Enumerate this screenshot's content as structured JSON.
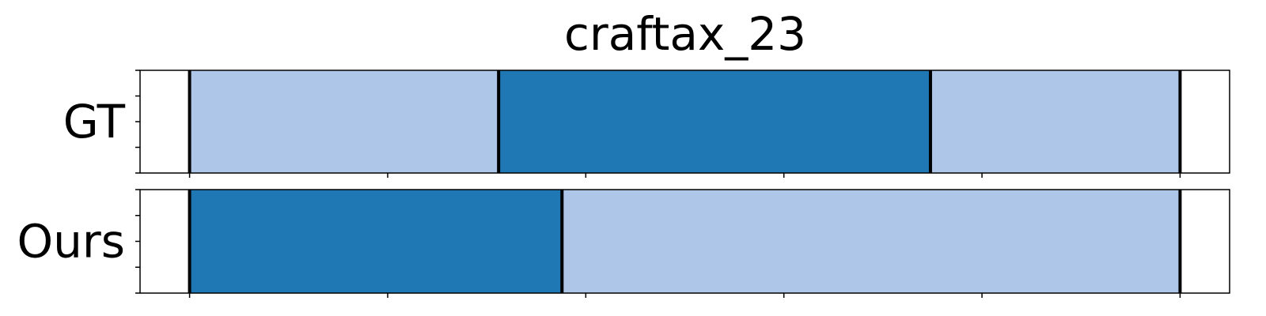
{
  "chart_data": {
    "type": "bar",
    "title": "craftax_23",
    "xlabel": "",
    "ylabel": "",
    "xlim": [
      -0.5,
      10.5
    ],
    "grid": false,
    "legend": "none",
    "colors": {
      "dark": "#1f77b4",
      "light": "#aec7e8",
      "boundary": "#000000"
    },
    "rows": [
      {
        "label": "GT",
        "segments": [
          {
            "start": 0,
            "end": 3.12,
            "color": "light"
          },
          {
            "start": 3.12,
            "end": 7.48,
            "color": "dark"
          },
          {
            "start": 7.48,
            "end": 10,
            "color": "light"
          }
        ],
        "boundaries": [
          0,
          3.12,
          7.48,
          10
        ]
      },
      {
        "label": "Ours",
        "segments": [
          {
            "start": 0,
            "end": 3.76,
            "color": "dark"
          },
          {
            "start": 3.76,
            "end": 10,
            "color": "light"
          }
        ],
        "boundaries": [
          0,
          3.76,
          10
        ]
      }
    ]
  }
}
